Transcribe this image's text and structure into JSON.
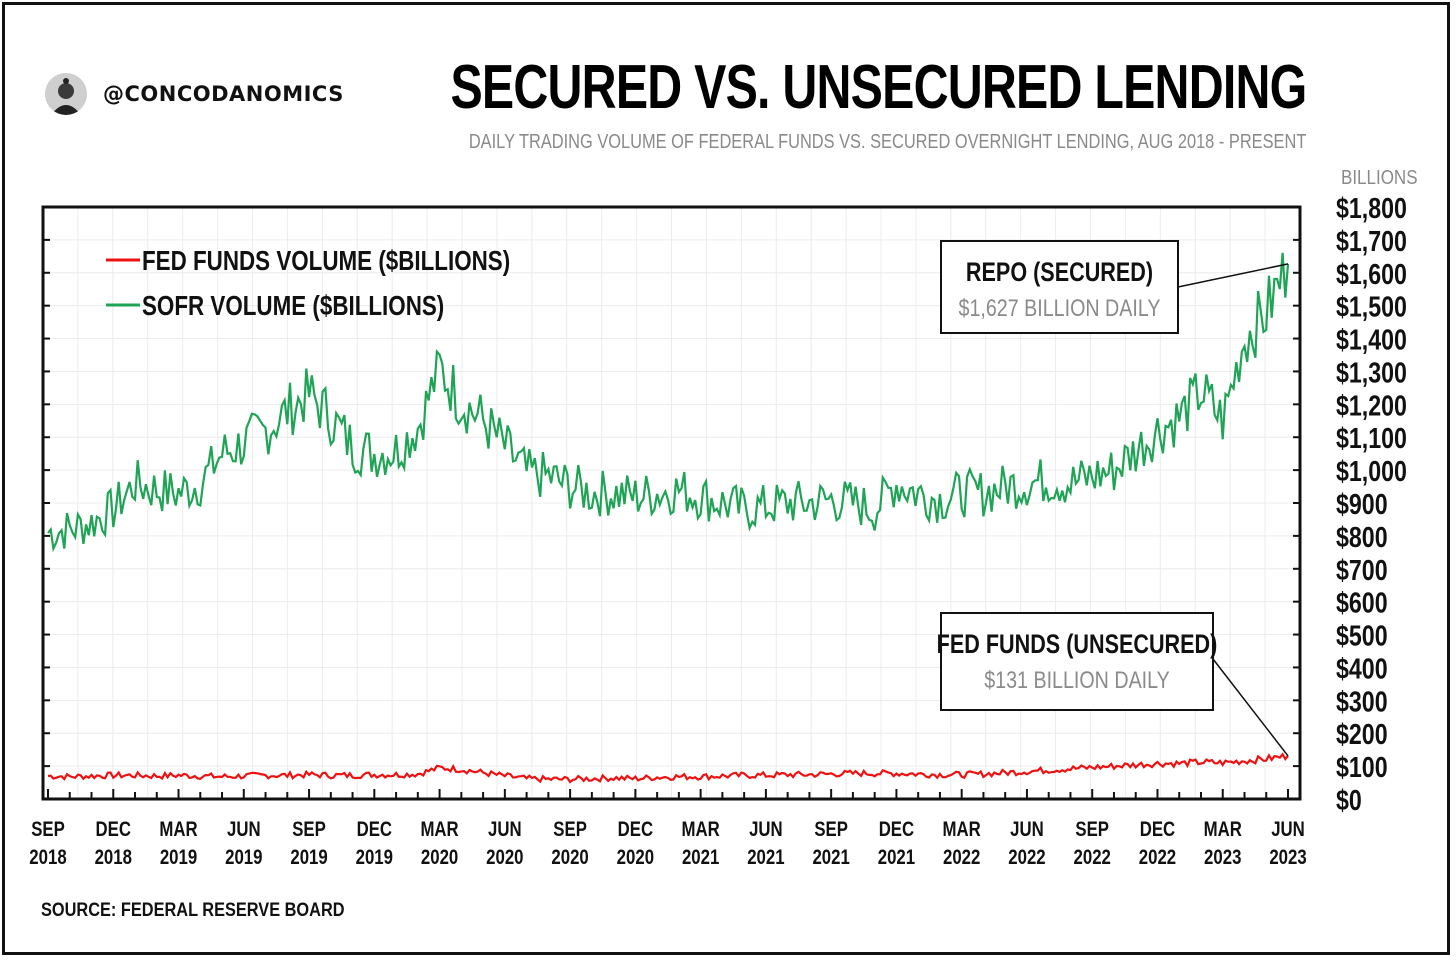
{
  "header": {
    "handle": "@CONCODANOMICS",
    "title": "SECURED VS. UNSECURED LENDING",
    "subtitle": "DAILY TRADING VOLUME OF FEDERAL FUNDS VS. SECURED OVERNIGHT LENDING, AUG 2018 - PRESENT",
    "unit_label": "BILLIONS"
  },
  "source": "SOURCE: FEDERAL RESERVE BOARD",
  "colors": {
    "sofr": "#1fa456",
    "fed_funds": "#ee1111",
    "frame": "#111111",
    "muted": "#8a8a8a"
  },
  "chart_data": {
    "type": "line",
    "xlim": [
      "2018-09",
      "2023-06"
    ],
    "ylim": [
      0,
      1800
    ],
    "grid": true,
    "legend_position": "top-left",
    "y_ticks": [
      "$0",
      "$100",
      "$200",
      "$300",
      "$400",
      "$500",
      "$600",
      "$700",
      "$800",
      "$900",
      "$1,000",
      "$1,100",
      "$1,200",
      "$1,300",
      "$1,400",
      "$1,500",
      "$1,600",
      "$1,700",
      "$1,800"
    ],
    "x_ticks": [
      {
        "month": "SEP",
        "year": "2018"
      },
      {
        "month": "DEC",
        "year": "2018"
      },
      {
        "month": "MAR",
        "year": "2019"
      },
      {
        "month": "JUN",
        "year": "2019"
      },
      {
        "month": "SEP",
        "year": "2019"
      },
      {
        "month": "DEC",
        "year": "2019"
      },
      {
        "month": "MAR",
        "year": "2020"
      },
      {
        "month": "JUN",
        "year": "2020"
      },
      {
        "month": "SEP",
        "year": "2020"
      },
      {
        "month": "DEC",
        "year": "2020"
      },
      {
        "month": "MAR",
        "year": "2021"
      },
      {
        "month": "JUN",
        "year": "2021"
      },
      {
        "month": "SEP",
        "year": "2021"
      },
      {
        "month": "DEC",
        "year": "2021"
      },
      {
        "month": "MAR",
        "year": "2022"
      },
      {
        "month": "JUN",
        "year": "2022"
      },
      {
        "month": "SEP",
        "year": "2022"
      },
      {
        "month": "DEC",
        "year": "2022"
      },
      {
        "month": "MAR",
        "year": "2023"
      },
      {
        "month": "JUN",
        "year": "2023"
      }
    ],
    "series": [
      {
        "name": "SOFR VOLUME ($BILLIONS)",
        "x": [
          "2018-09",
          "2018-10",
          "2018-11",
          "2018-12",
          "2019-01",
          "2019-02",
          "2019-03",
          "2019-04",
          "2019-05",
          "2019-06",
          "2019-07",
          "2019-08",
          "2019-09",
          "2019-10",
          "2019-11",
          "2019-12",
          "2020-01",
          "2020-02",
          "2020-03",
          "2020-04",
          "2020-05",
          "2020-06",
          "2020-07",
          "2020-08",
          "2020-09",
          "2020-10",
          "2020-11",
          "2020-12",
          "2021-01",
          "2021-02",
          "2021-03",
          "2021-04",
          "2021-05",
          "2021-06",
          "2021-07",
          "2021-08",
          "2021-09",
          "2021-10",
          "2021-11",
          "2021-12",
          "2022-01",
          "2022-02",
          "2022-03",
          "2022-04",
          "2022-05",
          "2022-06",
          "2022-07",
          "2022-08",
          "2022-09",
          "2022-10",
          "2022-11",
          "2022-12",
          "2023-01",
          "2023-02",
          "2023-03",
          "2023-04",
          "2023-05",
          "2023-06"
        ],
        "values": [
          810,
          820,
          840,
          880,
          960,
          940,
          930,
          960,
          1050,
          1080,
          1120,
          1180,
          1230,
          1160,
          1070,
          1050,
          1060,
          1130,
          1310,
          1210,
          1150,
          1070,
          990,
          980,
          950,
          930,
          930,
          920,
          930,
          940,
          920,
          900,
          880,
          890,
          900,
          900,
          910,
          900,
          880,
          960,
          930,
          910,
          930,
          930,
          950,
          960,
          970,
          960,
          980,
          1000,
          1060,
          1120,
          1160,
          1240,
          1150,
          1400,
          1480,
          1627
        ]
      },
      {
        "name": "FED FUNDS VOLUME ($BILLIONS)",
        "x": [
          "2018-09",
          "2018-10",
          "2018-11",
          "2018-12",
          "2019-01",
          "2019-02",
          "2019-03",
          "2019-04",
          "2019-05",
          "2019-06",
          "2019-07",
          "2019-08",
          "2019-09",
          "2019-10",
          "2019-11",
          "2019-12",
          "2020-01",
          "2020-02",
          "2020-03",
          "2020-04",
          "2020-05",
          "2020-06",
          "2020-07",
          "2020-08",
          "2020-09",
          "2020-10",
          "2020-11",
          "2020-12",
          "2021-01",
          "2021-02",
          "2021-03",
          "2021-04",
          "2021-05",
          "2021-06",
          "2021-07",
          "2021-08",
          "2021-09",
          "2021-10",
          "2021-11",
          "2021-12",
          "2022-01",
          "2022-02",
          "2022-03",
          "2022-04",
          "2022-05",
          "2022-06",
          "2022-07",
          "2022-08",
          "2022-09",
          "2022-10",
          "2022-11",
          "2022-12",
          "2023-01",
          "2023-02",
          "2023-03",
          "2023-04",
          "2023-05",
          "2023-06"
        ],
        "values": [
          70,
          68,
          70,
          72,
          72,
          70,
          72,
          70,
          68,
          70,
          72,
          72,
          74,
          72,
          72,
          74,
          74,
          76,
          95,
          90,
          80,
          70,
          62,
          60,
          60,
          62,
          64,
          62,
          66,
          68,
          68,
          70,
          72,
          72,
          74,
          74,
          76,
          78,
          78,
          78,
          76,
          74,
          74,
          76,
          80,
          84,
          88,
          92,
          96,
          100,
          104,
          108,
          108,
          112,
          110,
          116,
          122,
          131
        ]
      }
    ],
    "annotations": [
      {
        "title": "REPO (SECURED)",
        "text": "$1,627 BILLION DAILY",
        "series": "SOFR VOLUME ($BILLIONS)"
      },
      {
        "title": "FED FUNDS (UNSECURED)",
        "text": "$131 BILLION DAILY",
        "series": "FED FUNDS VOLUME ($BILLIONS)"
      }
    ]
  }
}
